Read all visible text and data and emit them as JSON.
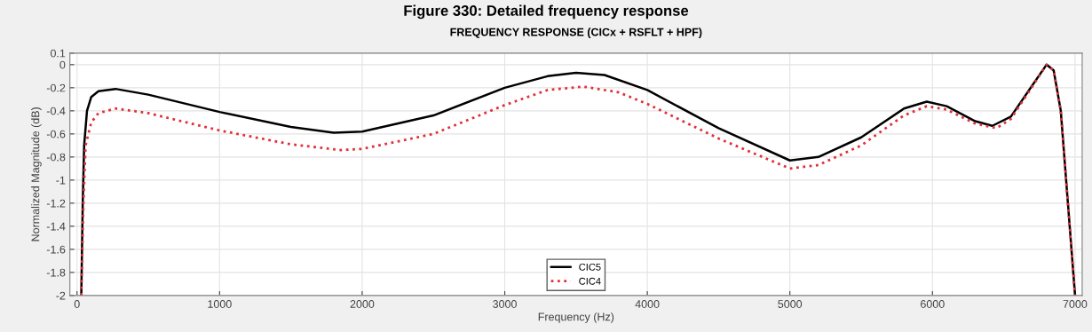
{
  "chart_data": {
    "type": "line",
    "title": "FREQUENCY RESPONSE (CICx + RSFLT + HPF)",
    "subtitle": "Figure 330: Detailed frequency response",
    "xlabel": "Frequency (Hz)",
    "ylabel": "Normalized Magnitude (dB)",
    "xlim": [
      -50,
      7050
    ],
    "ylim": [
      -2,
      0.1
    ],
    "xticks": [
      0,
      1000,
      2000,
      3000,
      4000,
      5000,
      6000,
      7000
    ],
    "yticks": [
      0.1,
      0,
      -0.2,
      -0.4,
      -0.6,
      -0.8,
      -1,
      -1.2,
      -1.4,
      -1.6,
      -1.8,
      -2
    ],
    "grid": true,
    "legend": "bottom",
    "series": [
      {
        "name": "CIC5",
        "color": "#000000",
        "line_style": "solid",
        "x": [
          30,
          40,
          50,
          70,
          100,
          150,
          270,
          500,
          1000,
          1500,
          1800,
          2000,
          2500,
          3000,
          3300,
          3500,
          3700,
          4000,
          4500,
          5000,
          5200,
          5500,
          5800,
          5960,
          6100,
          6300,
          6420,
          6550,
          6700,
          6800,
          6850,
          6900,
          6950,
          7000
        ],
        "values": [
          -2,
          -1.2,
          -0.7,
          -0.4,
          -0.28,
          -0.23,
          -0.21,
          -0.26,
          -0.41,
          -0.54,
          -0.59,
          -0.58,
          -0.44,
          -0.2,
          -0.1,
          -0.07,
          -0.09,
          -0.22,
          -0.55,
          -0.83,
          -0.8,
          -0.63,
          -0.38,
          -0.32,
          -0.36,
          -0.49,
          -0.53,
          -0.45,
          -0.18,
          0,
          -0.05,
          -0.4,
          -1.2,
          -2
        ]
      },
      {
        "name": "CIC4",
        "color": "#e0303a",
        "line_style": "dotted",
        "x": [
          30,
          45,
          60,
          100,
          150,
          270,
          500,
          1000,
          1500,
          1850,
          2000,
          2500,
          3000,
          3300,
          3550,
          3800,
          4000,
          4500,
          5000,
          5200,
          5500,
          5800,
          5960,
          6100,
          6300,
          6450,
          6550,
          6700,
          6800,
          6850,
          6900,
          6950,
          7000
        ],
        "values": [
          -2,
          -1.2,
          -0.7,
          -0.5,
          -0.42,
          -0.38,
          -0.42,
          -0.57,
          -0.69,
          -0.74,
          -0.73,
          -0.6,
          -0.35,
          -0.22,
          -0.19,
          -0.24,
          -0.34,
          -0.64,
          -0.9,
          -0.87,
          -0.7,
          -0.44,
          -0.36,
          -0.39,
          -0.51,
          -0.55,
          -0.47,
          -0.19,
          0,
          -0.05,
          -0.4,
          -1.2,
          -2
        ]
      }
    ]
  }
}
